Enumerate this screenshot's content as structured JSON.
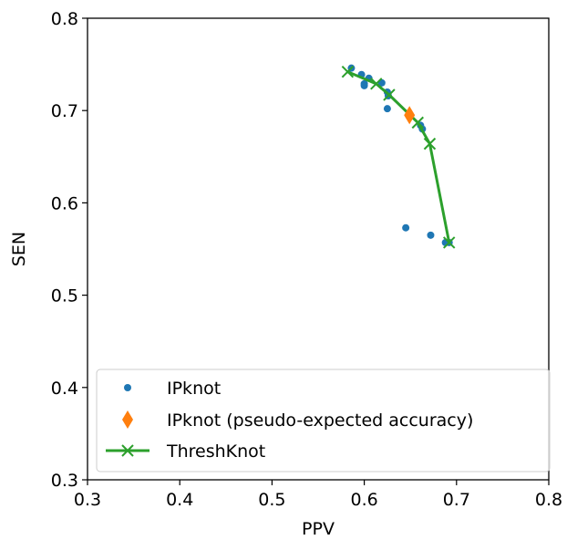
{
  "chart_data": {
    "type": "scatter",
    "xlabel": "PPV",
    "ylabel": "SEN",
    "xlim": [
      0.3,
      0.8
    ],
    "ylim": [
      0.3,
      0.8
    ],
    "xticks": [
      "0.3",
      "0.4",
      "0.5",
      "0.6",
      "0.7",
      "0.8"
    ],
    "yticks": [
      "0.3",
      "0.4",
      "0.5",
      "0.6",
      "0.7",
      "0.8"
    ],
    "grid": false,
    "legend_position": "lower-left",
    "series": [
      {
        "name": "IPknot",
        "marker": "circle",
        "color": "#1f77b4",
        "points": [
          [
            0.586,
            0.746
          ],
          [
            0.597,
            0.739
          ],
          [
            0.605,
            0.735
          ],
          [
            0.6,
            0.729
          ],
          [
            0.6,
            0.727
          ],
          [
            0.619,
            0.73
          ],
          [
            0.625,
            0.72
          ],
          [
            0.626,
            0.716
          ],
          [
            0.625,
            0.702
          ],
          [
            0.661,
            0.684
          ],
          [
            0.663,
            0.68
          ],
          [
            0.645,
            0.573
          ],
          [
            0.672,
            0.565
          ],
          [
            0.688,
            0.557
          ],
          [
            0.692,
            0.557
          ]
        ]
      },
      {
        "name": "IPknot (pseudo-expected accuracy)",
        "marker": "diamond",
        "color": "#ff7f0e",
        "points": [
          [
            0.649,
            0.695
          ]
        ]
      },
      {
        "name": "ThreshKnot",
        "marker": "x-line",
        "color": "#2ca02c",
        "points": [
          [
            0.582,
            0.742
          ],
          [
            0.613,
            0.729
          ],
          [
            0.627,
            0.717
          ],
          [
            0.658,
            0.687
          ],
          [
            0.671,
            0.664
          ],
          [
            0.692,
            0.557
          ]
        ]
      }
    ]
  }
}
